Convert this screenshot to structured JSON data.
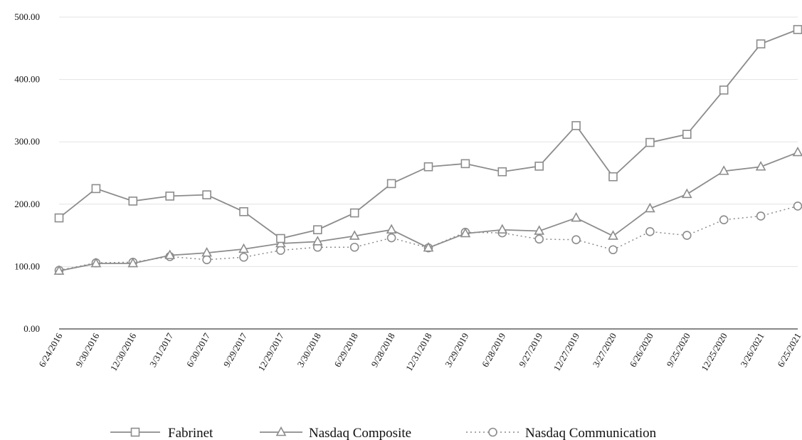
{
  "chart_data": {
    "type": "line",
    "categories": [
      "6/24/2016",
      "9/30/2016",
      "12/30/2016",
      "3/31/2017",
      "6/30/2017",
      "9/29/2017",
      "12/29/2017",
      "3/30/2018",
      "6/29/2018",
      "9/28/2018",
      "12/31/2018",
      "3/29/2019",
      "6/28/2019",
      "9/27/2019",
      "12/27/2019",
      "3/27/2020",
      "6/26/2020",
      "9/25/2020",
      "12/25/2020",
      "3/26/2021",
      "6/25/2021"
    ],
    "y_ticks": [
      "0.00",
      "100.00",
      "200.00",
      "300.00",
      "400.00",
      "500.00"
    ],
    "ylim": [
      0,
      500
    ],
    "grid": true,
    "legend_position": "bottom",
    "series": [
      {
        "name": "Fabrinet",
        "marker": "square",
        "dash": "solid",
        "color": "#8c8c8c",
        "values": [
          178,
          225,
          205,
          213,
          215,
          188,
          145,
          159,
          186,
          233,
          260,
          265,
          252,
          261,
          326,
          244,
          299,
          312,
          383,
          457,
          480
        ]
      },
      {
        "name": "Nasdaq Composite",
        "marker": "triangle",
        "dash": "solid",
        "color": "#8c8c8c",
        "values": [
          93,
          105,
          105,
          118,
          122,
          128,
          137,
          140,
          149,
          159,
          130,
          153,
          159,
          157,
          178,
          149,
          193,
          216,
          253,
          260,
          283
        ]
      },
      {
        "name": "Nasdaq Communication",
        "marker": "circle",
        "dash": "dotted",
        "color": "#8c8c8c",
        "values": [
          94,
          106,
          107,
          116,
          111,
          115,
          126,
          131,
          131,
          146,
          130,
          155,
          154,
          144,
          143,
          127,
          156,
          150,
          175,
          181,
          197
        ]
      }
    ]
  }
}
